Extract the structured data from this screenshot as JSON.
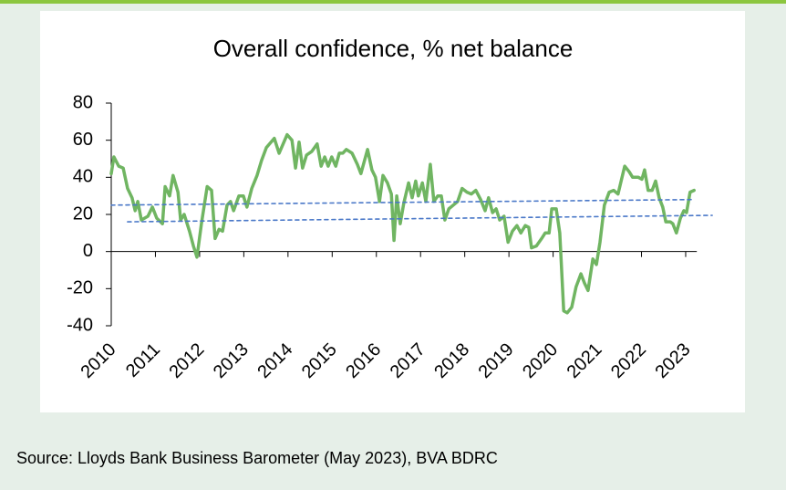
{
  "chart_data": {
    "type": "line",
    "title": "Overall confidence, % net balance",
    "source": "Source: Lloyds Bank Business Barometer (May 2023), BVA BDRC",
    "xlim": [
      2010,
      2023.6
    ],
    "xticks": [
      2010,
      2011,
      2012,
      2013,
      2014,
      2015,
      2016,
      2017,
      2018,
      2019,
      2020,
      2021,
      2022,
      2023
    ],
    "ylim": [
      -40,
      80
    ],
    "yticks": [
      -40,
      -20,
      0,
      20,
      40,
      60,
      80
    ],
    "grid": false,
    "series": [
      {
        "color": "#70b562",
        "style": "solid",
        "x": [
          2010.0,
          2010.06,
          2010.17,
          2010.27,
          2010.37,
          2010.47,
          2010.54,
          2010.6,
          2010.68,
          2010.83,
          2010.93,
          2011.03,
          2011.16,
          2011.22,
          2011.32,
          2011.4,
          2011.51,
          2011.57,
          2011.65,
          2011.77,
          2011.86,
          2011.94,
          2012.04,
          2012.17,
          2012.27,
          2012.35,
          2012.44,
          2012.52,
          2012.62,
          2012.7,
          2012.77,
          2012.89,
          2012.99,
          2013.07,
          2013.18,
          2013.3,
          2013.4,
          2013.51,
          2013.69,
          2013.8,
          2013.98,
          2014.09,
          2014.17,
          2014.25,
          2014.33,
          2014.42,
          2014.54,
          2014.66,
          2014.75,
          2014.83,
          2014.91,
          2014.99,
          2015.08,
          2015.16,
          2015.24,
          2015.32,
          2015.45,
          2015.57,
          2015.65,
          2015.8,
          2015.9,
          2015.98,
          2016.07,
          2016.15,
          2016.25,
          2016.34,
          2016.4,
          2016.46,
          2016.54,
          2016.62,
          2016.73,
          2016.81,
          2016.89,
          2016.95,
          2017.04,
          2017.12,
          2017.22,
          2017.3,
          2017.39,
          2017.47,
          2017.55,
          2017.64,
          2017.74,
          2017.84,
          2017.94,
          2018.05,
          2018.15,
          2018.25,
          2018.36,
          2018.46,
          2018.54,
          2018.63,
          2018.71,
          2018.79,
          2018.89,
          2018.98,
          2019.08,
          2019.18,
          2019.27,
          2019.37,
          2019.45,
          2019.51,
          2019.62,
          2019.74,
          2019.82,
          2019.91,
          2019.97,
          2020.07,
          2020.15,
          2020.24,
          2020.32,
          2020.42,
          2020.52,
          2020.63,
          2020.71,
          2020.79,
          2020.9,
          2020.98,
          2021.06,
          2021.16,
          2021.27,
          2021.37,
          2021.47,
          2021.62,
          2021.72,
          2021.8,
          2021.93,
          2022.01,
          2022.07,
          2022.15,
          2022.24,
          2022.32,
          2022.4,
          2022.48,
          2022.55,
          2022.65,
          2022.71,
          2022.79,
          2022.88,
          2022.96,
          2023.02,
          2023.1,
          2023.19
        ],
        "values": [
          42,
          51,
          46,
          45,
          34,
          29,
          22,
          27,
          17,
          19,
          24,
          18,
          15,
          35,
          30,
          41,
          32,
          17,
          20,
          11,
          3,
          -3,
          15,
          35,
          33,
          7,
          12,
          11,
          25,
          27,
          22,
          30,
          30,
          24,
          34,
          41,
          49,
          56,
          61,
          53,
          63,
          60,
          45,
          59,
          45,
          52,
          54,
          58,
          46,
          51,
          46,
          51,
          46,
          53,
          53,
          55,
          53,
          47,
          42,
          55,
          44,
          40,
          27,
          41,
          37,
          31,
          6,
          30,
          15,
          26,
          37,
          29,
          38,
          30,
          37,
          27,
          47,
          27,
          30,
          30,
          17,
          23,
          25,
          27,
          34,
          32,
          31,
          33,
          28,
          22,
          29,
          21,
          23,
          17,
          19,
          5,
          11,
          14,
          10,
          14,
          13,
          2,
          3,
          7,
          10,
          10,
          23,
          23,
          10,
          -32,
          -33,
          -30,
          -19,
          -12,
          -17,
          -21,
          -4,
          -7,
          5,
          25,
          32,
          33,
          31,
          46,
          43,
          40,
          40,
          39,
          44,
          33,
          33,
          38,
          29,
          24,
          16,
          16,
          15,
          10,
          18,
          22,
          21,
          32,
          33
        ]
      },
      {
        "color": "#4a78c8",
        "style": "dashed",
        "x": [
          2010.0,
          2023.2
        ],
        "values": [
          25,
          28
        ]
      },
      {
        "color": "#4a78c8",
        "style": "dashed",
        "x": [
          2010.37,
          2023.6
        ],
        "values": [
          16,
          19.5
        ]
      }
    ]
  }
}
